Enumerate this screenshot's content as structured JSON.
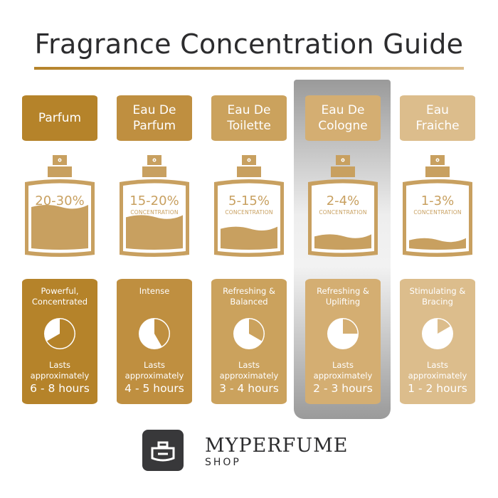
{
  "title": "Fragrance Concentration Guide",
  "concentration_label": "CONCENTRATION",
  "lasts_label": "Lasts approximately",
  "highlighted_column": 3,
  "columns": [
    {
      "name": "Parfum",
      "percent": "20-30%",
      "description": "Powerful,\nConcentrated",
      "hours": "6 - 8 hours",
      "clock_hours": 8,
      "fill_level": 0.3,
      "color": "#b5832a"
    },
    {
      "name": "Eau De\nParfum",
      "percent": "15-20%",
      "description": "Intense",
      "hours": "4 - 5 hours",
      "clock_hours": 5,
      "fill_level": 0.22,
      "color": "#bf8f40"
    },
    {
      "name": "Eau De\nToilette",
      "percent": "5-15%",
      "description": "Refreshing &\nBalanced",
      "hours": "3 - 4 hours",
      "clock_hours": 4,
      "fill_level": 0.13,
      "color": "#cba25d"
    },
    {
      "name": "Eau De\nCologne",
      "percent": "2-4%",
      "description": "Refreshing &\nUplifting",
      "hours": "2 - 3 hours",
      "clock_hours": 3,
      "fill_level": 0.07,
      "color": "#d4ae72"
    },
    {
      "name": "Eau\nFraiche",
      "percent": "1-3%",
      "description": "Stimulating &\nBracing",
      "hours": "1 - 2 hours",
      "clock_hours": 2,
      "fill_level": 0.04,
      "color": "#dcbd8c"
    }
  ],
  "bottle_color": "#c8a060",
  "logo": {
    "brand": "MYPERFUME",
    "sub": "SHOP"
  }
}
